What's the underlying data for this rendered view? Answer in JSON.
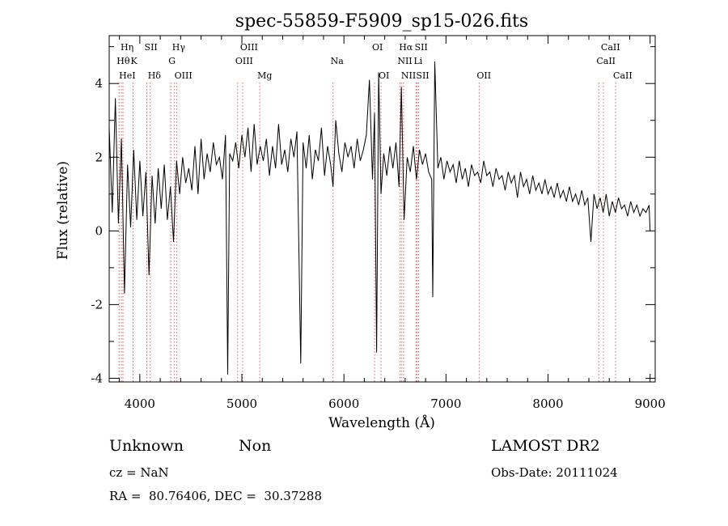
{
  "chart_data": {
    "type": "line",
    "title": "spec-55859-F5909_sp15-026.fits",
    "xlabel": "Wavelength (Å)",
    "ylabel": "Flux (relative)",
    "xlim": [
      3700,
      9050
    ],
    "ylim": [
      -4.1,
      5.3
    ],
    "x_ticks": [
      4000,
      5000,
      6000,
      7000,
      8000,
      9000
    ],
    "y_ticks": [
      -4,
      -2,
      0,
      2,
      4
    ],
    "grid": false,
    "legend": "none",
    "line_color": "#000000",
    "marker_color": "#e06060",
    "series": [
      {
        "x": [
          3700,
          3730,
          3760,
          3790,
          3820,
          3850,
          3880,
          3910,
          3940,
          3970,
          4000,
          4030,
          4060,
          4090,
          4120,
          4150,
          4180,
          4210,
          4240,
          4270,
          4300,
          4330,
          4360,
          4390,
          4420,
          4450,
          4480,
          4510,
          4540,
          4570,
          4600,
          4630,
          4660,
          4690,
          4720,
          4750,
          4780,
          4810,
          4840,
          4861,
          4880,
          4910,
          4940,
          4970,
          5000,
          5030,
          5060,
          5090,
          5120,
          5150,
          5180,
          5210,
          5240,
          5270,
          5300,
          5330,
          5360,
          5390,
          5420,
          5450,
          5480,
          5510,
          5540,
          5577,
          5600,
          5630,
          5660,
          5690,
          5720,
          5750,
          5780,
          5810,
          5840,
          5870,
          5893,
          5920,
          5950,
          5980,
          6010,
          6040,
          6070,
          6100,
          6130,
          6160,
          6190,
          6220,
          6250,
          6280,
          6300,
          6320,
          6340,
          6363,
          6390,
          6420,
          6450,
          6480,
          6510,
          6540,
          6563,
          6590,
          6620,
          6650,
          6680,
          6710,
          6740,
          6770,
          6800,
          6830,
          6860,
          6870,
          6890,
          6920,
          6950,
          6980,
          7010,
          7040,
          7070,
          7100,
          7130,
          7160,
          7190,
          7220,
          7250,
          7280,
          7310,
          7340,
          7370,
          7400,
          7430,
          7460,
          7490,
          7520,
          7550,
          7580,
          7610,
          7640,
          7670,
          7700,
          7730,
          7760,
          7790,
          7820,
          7850,
          7880,
          7910,
          7940,
          7970,
          8000,
          8030,
          8060,
          8090,
          8120,
          8150,
          8180,
          8210,
          8240,
          8270,
          8300,
          8330,
          8360,
          8390,
          8420,
          8450,
          8480,
          8510,
          8540,
          8570,
          8600,
          8630,
          8660,
          8690,
          8720,
          8750,
          8780,
          8810,
          8840,
          8870,
          8900,
          8930,
          8960,
          8990,
          9000
        ],
        "y": [
          2.8,
          0.5,
          3.6,
          0.2,
          2.5,
          -1.7,
          1.8,
          0.1,
          2.2,
          0.3,
          1.9,
          0.4,
          1.6,
          -1.2,
          1.5,
          0.2,
          1.7,
          0.6,
          1.8,
          0.3,
          1.2,
          -0.3,
          1.9,
          1.0,
          2.0,
          1.3,
          1.7,
          1.1,
          2.3,
          1.0,
          2.5,
          1.4,
          2.1,
          1.6,
          2.4,
          1.8,
          2.0,
          1.4,
          2.6,
          -3.9,
          2.1,
          1.9,
          2.4,
          1.7,
          2.6,
          2.0,
          2.8,
          1.6,
          2.9,
          1.8,
          2.3,
          1.9,
          2.5,
          1.5,
          2.3,
          1.7,
          2.9,
          1.8,
          2.2,
          1.6,
          2.5,
          2.0,
          2.7,
          -3.6,
          2.4,
          1.7,
          2.6,
          1.4,
          2.2,
          1.9,
          2.8,
          1.5,
          2.3,
          1.8,
          1.2,
          3.0,
          2.1,
          1.6,
          2.4,
          2.0,
          2.3,
          1.7,
          2.5,
          1.9,
          2.2,
          2.6,
          4.1,
          1.4,
          3.2,
          -3.3,
          4.3,
          1.0,
          2.1,
          1.5,
          2.3,
          1.7,
          2.4,
          1.2,
          3.9,
          0.3,
          2.0,
          1.6,
          2.3,
          1.4,
          2.2,
          1.8,
          2.1,
          1.6,
          1.4,
          -1.8,
          4.6,
          1.7,
          2.0,
          1.4,
          1.9,
          1.6,
          1.8,
          1.3,
          1.9,
          1.4,
          1.7,
          1.2,
          1.8,
          1.5,
          1.6,
          1.3,
          1.9,
          1.5,
          1.6,
          1.2,
          1.7,
          1.4,
          1.5,
          1.1,
          1.6,
          1.3,
          1.5,
          0.9,
          1.6,
          1.2,
          1.4,
          1.0,
          1.5,
          1.1,
          1.3,
          1.0,
          1.4,
          1.0,
          1.2,
          0.9,
          1.3,
          0.9,
          1.1,
          0.8,
          1.2,
          0.8,
          1.0,
          0.7,
          1.1,
          0.7,
          0.9,
          -0.3,
          1.0,
          0.6,
          0.9,
          0.5,
          1.0,
          0.4,
          0.8,
          0.5,
          0.9,
          0.6,
          0.7,
          0.4,
          0.8,
          0.5,
          0.7,
          0.4,
          0.6,
          0.5,
          0.7,
          0.0
        ]
      }
    ],
    "spectral_lines": [
      {
        "label": "Hη",
        "wl": 3835,
        "row": 0
      },
      {
        "label": "Hθ",
        "wl": 3797,
        "row": 1
      },
      {
        "label": "HeI",
        "wl": 3820,
        "row": 2
      },
      {
        "label": "SII",
        "wl": 4069,
        "row": 0
      },
      {
        "label": "K",
        "wl": 3934,
        "row": 1
      },
      {
        "label": "Hδ",
        "wl": 4102,
        "row": 2
      },
      {
        "label": "Hγ",
        "wl": 4340,
        "row": 0
      },
      {
        "label": "G",
        "wl": 4304,
        "row": 1
      },
      {
        "label": "OIII",
        "wl": 4363,
        "row": 2
      },
      {
        "label": "OIII",
        "wl": 5007,
        "row": 0
      },
      {
        "label": "OIII",
        "wl": 4959,
        "row": 1
      },
      {
        "label": "Mg",
        "wl": 5175,
        "row": 2
      },
      {
        "label": "Na",
        "wl": 5893,
        "row": 1
      },
      {
        "label": "OI",
        "wl": 6300,
        "row": 0
      },
      {
        "label": "OI",
        "wl": 6363,
        "row": 2
      },
      {
        "label": "Hα",
        "wl": 6563,
        "row": 0
      },
      {
        "label": "SII",
        "wl": 6717,
        "row": 0
      },
      {
        "label": "NII",
        "wl": 6548,
        "row": 1
      },
      {
        "label": "Li",
        "wl": 6708,
        "row": 1
      },
      {
        "label": "NII",
        "wl": 6584,
        "row": 2
      },
      {
        "label": "SII",
        "wl": 6731,
        "row": 2
      },
      {
        "label": "OII",
        "wl": 7325,
        "row": 2
      },
      {
        "label": "CaII",
        "wl": 8542,
        "row": 0
      },
      {
        "label": "CaII",
        "wl": 8498,
        "row": 1
      },
      {
        "label": "CaII",
        "wl": 8662,
        "row": 2
      }
    ]
  },
  "footer": {
    "class_text": "Unknown",
    "subclass_text": "Non",
    "survey": "LAMOST DR2",
    "cz": "cz = NaN",
    "obs_date": "Obs-Date: 20111024",
    "coords": "RA =  80.76406, DEC =  30.37288"
  }
}
